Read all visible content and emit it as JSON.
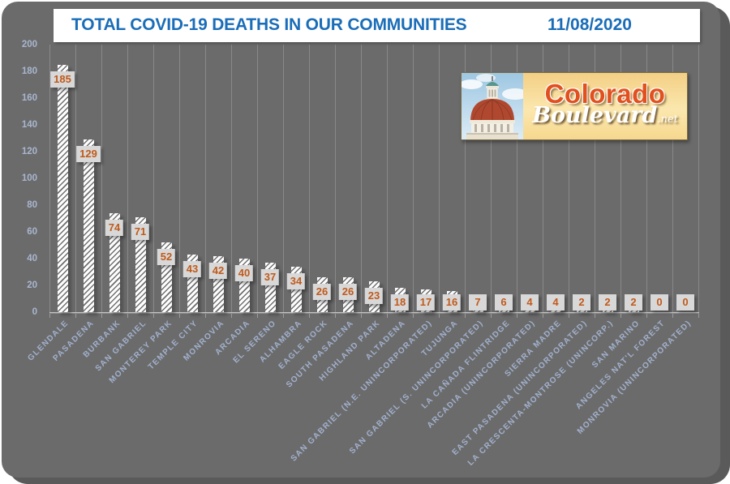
{
  "header": {
    "title": "TOTAL COVID-19 DEATHS IN OUR COMMUNITIES",
    "date": "11/08/2020"
  },
  "logo": {
    "word1": "Colorado",
    "word2": "Boulevard",
    "suffix": ".net"
  },
  "chart_data": {
    "type": "bar",
    "title": "TOTAL COVID-19 DEATHS IN OUR COMMUNITIES",
    "date_label": "11/08/2020",
    "categories": [
      "GLENDALE",
      "PASADENA",
      "BURBANK",
      "SAN GABRIEL",
      "MONTEREY PARK",
      "TEMPLE CITY",
      "MONROVIA",
      "ARCADIA",
      "EL SERENO",
      "ALHAMBRA",
      "EAGLE ROCK",
      "SOUTH PASADENA",
      "HIGHLAND PARK",
      "ALTADENA",
      "SAN GABRIEL (N.E. UNINCORPORATED)",
      "TUJUNGA",
      "SAN GABRIEL (S. UNINCORPORATED)",
      "LA CAÑADA FLINTRIDGE",
      "ARCADIA (UNINCORPORATED)",
      "SIERRA MADRE",
      "EAST PASADENA (UNINCORPORATED)",
      "LA CRESCENTA-MONTROSE (UNINCORP.)",
      "SAN MARINO",
      "ANGELES NAT'L FOREST",
      "MONROVIA (UNINCORPORATED)"
    ],
    "values": [
      185,
      129,
      74,
      71,
      52,
      43,
      42,
      40,
      37,
      34,
      26,
      26,
      23,
      18,
      17,
      16,
      7,
      6,
      4,
      4,
      2,
      2,
      2,
      0,
      0
    ],
    "ylim": [
      0,
      200
    ],
    "yticks": [
      0,
      20,
      40,
      60,
      80,
      100,
      120,
      140,
      160,
      180,
      200
    ],
    "grid": "vertical-only",
    "legend": "none",
    "bar_style": "white diagonal hatch on gray background, value labels in gray boxes at bar tops",
    "colors": {
      "background": "#6b6b6b",
      "title_text": "#1a6db8",
      "bar_fill": "#ffffff",
      "bar_hatch": "#6f6f6f",
      "value_text": "#c05a1b",
      "value_box": "#d8d8d8",
      "axis_labels": "#a2b1ce",
      "gridline": "#898989",
      "logo_orange": "#e2501d",
      "logo_background": "#f8dc9b"
    }
  }
}
